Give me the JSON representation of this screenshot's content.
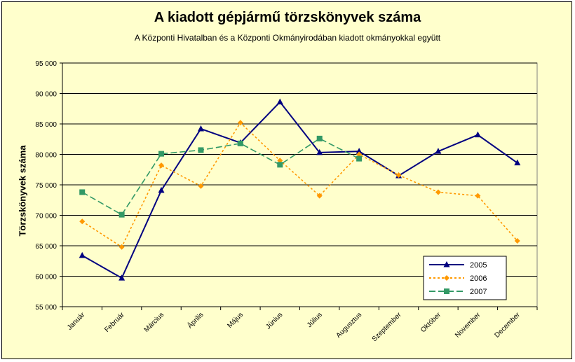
{
  "chart_data": {
    "type": "line",
    "title": "A  kiadott gépjármű  törzskönyvek száma",
    "subtitle": "A Központi Hivatalban és a Központi Okmányirodában kiadott okmányokkal együtt",
    "xlabel": "",
    "ylabel": "Törzskönyvek száma",
    "ylim": [
      55000,
      95000
    ],
    "yticks": [
      "55 000",
      "60 000",
      "65 000",
      "70 000",
      "75 000",
      "80 000",
      "85 000",
      "90 000",
      "95 000"
    ],
    "grid": true,
    "legend_position": "bottom-right",
    "categories": [
      "Január",
      "Február",
      "Március",
      "Április",
      "Május",
      "Június",
      "Július",
      "Augusztus",
      "Szeptember",
      "Október",
      "November",
      "December"
    ],
    "series": [
      {
        "name": "2005",
        "color": "#000080",
        "marker": "triangle",
        "dash": "solid",
        "values": [
          63400,
          59700,
          74100,
          84200,
          81900,
          88600,
          80300,
          80500,
          76500,
          80500,
          83200,
          78600
        ]
      },
      {
        "name": "2006",
        "color": "#ff9900",
        "marker": "diamond",
        "dash": "dotted",
        "values": [
          69000,
          64800,
          78200,
          74800,
          85200,
          79000,
          73200,
          80000,
          76600,
          73800,
          73200,
          65800
        ]
      },
      {
        "name": "2007",
        "color": "#339966",
        "marker": "square",
        "dash": "dashed",
        "values": [
          73800,
          70100,
          80100,
          80700,
          81800,
          78300,
          82600,
          79300,
          null,
          null,
          null,
          null
        ]
      }
    ]
  }
}
